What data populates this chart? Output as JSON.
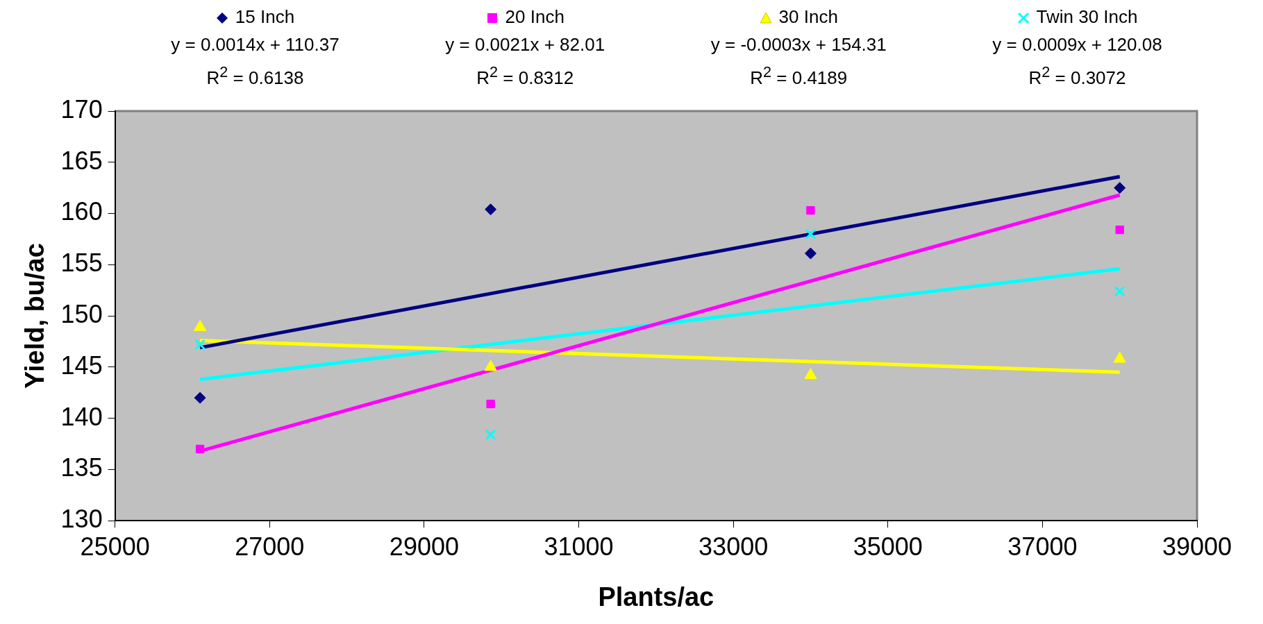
{
  "chart_data": {
    "type": "scatter",
    "xlabel": "Plants/ac",
    "ylabel": "Yield, bu/ac",
    "xlim": [
      25000,
      39000
    ],
    "xticks": [
      25000,
      27000,
      29000,
      31000,
      33000,
      35000,
      37000,
      39000
    ],
    "ylim": [
      130,
      170
    ],
    "yticks": [
      130,
      135,
      140,
      145,
      150,
      155,
      160,
      165,
      170
    ],
    "grid": false,
    "legend": "top",
    "annotations": [
      "y = 0.0014x + 110.37",
      "R$^{2}$ = 0.6138",
      "y = 0.0021x + 82.01",
      "R$^{2}$ = 0.8312",
      "y = -0.0003x + 154.31",
      "R$^{2}$ = 0.4189",
      "y = 0.0009x + 120.08",
      "R$^{2}$ = 0.3072"
    ],
    "series": [
      {
        "name": "15 Inch",
        "color": "#000080",
        "marker": "diamond",
        "x": [
          26100,
          29860,
          34000,
          38000
        ],
        "values": [
          142.0,
          160.4,
          156.1,
          162.5
        ]
      },
      {
        "name": "20 Inch",
        "color": "#ff00ff",
        "marker": "square",
        "x": [
          26100,
          29860,
          34000,
          38000
        ],
        "values": [
          137.0,
          141.4,
          160.3,
          158.4
        ]
      },
      {
        "name": "30 Inch",
        "color": "#ffff00",
        "marker": "triangle",
        "x": [
          26100,
          29860,
          34000,
          38000
        ],
        "values": [
          148.9,
          145.0,
          144.2,
          145.8
        ]
      },
      {
        "name": "Twin 30 Inch",
        "color": "#00ffff",
        "marker": "cross",
        "x": [
          26100,
          29860,
          34000,
          38000
        ],
        "values": [
          147.2,
          138.4,
          158.0,
          152.4
        ]
      },
      {
        "type": "line",
        "color": "#000080",
        "marker": "none",
        "x": [
          26100,
          38000
        ],
        "values": [
          146.9,
          163.6
        ]
      },
      {
        "type": "line",
        "color": "#ff00ff",
        "marker": "none",
        "x": [
          26100,
          38000
        ],
        "values": [
          136.8,
          161.8
        ]
      },
      {
        "type": "line",
        "color": "#ffff00",
        "marker": "none",
        "x": [
          26100,
          38000
        ],
        "values": [
          147.6,
          144.5
        ]
      },
      {
        "type": "line",
        "color": "#00ffff",
        "marker": "none",
        "x": [
          26100,
          38000
        ],
        "values": [
          143.8,
          154.6
        ]
      }
    ]
  }
}
